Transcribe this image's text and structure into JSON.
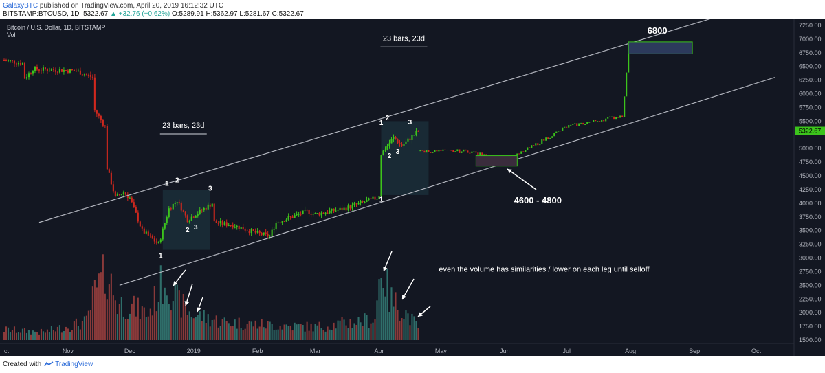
{
  "header": {
    "publisher": "GalaxyBTC",
    "published_text": "published on TradingView.com, April 20, 2019 16:12:32 UTC",
    "symbol": "BITSTAMP:BTCUSD, 1D",
    "last": "5322.67",
    "change": "▲ +32.76 (+0.62%)",
    "ohlc": "O:5289.91 H:5362.97 L:5281.67 C:5322.67"
  },
  "footer": {
    "created_with": "Created with",
    "brand": "TradingView"
  },
  "colors": {
    "bg": "#131722",
    "up": "#3cc41c",
    "down": "#d0281e",
    "vol_up": "#2f6e6a",
    "vol_down": "#8a3a3a",
    "channel": "#b2b5be",
    "price_tag": "#3cc41c"
  },
  "chart_data": {
    "type": "candlestick",
    "title": "Bitcoin / U.S. Dollar, 1D, BITSTAMP",
    "subtitle": "Vol",
    "price_tag": "5322.67",
    "y_ticks": [
      7250,
      7000,
      6750,
      6500,
      6250,
      6000,
      5750,
      5500,
      5000,
      4750,
      4500,
      4250,
      4000,
      3750,
      3500,
      3250,
      3000,
      2750,
      2500,
      2250,
      2000,
      1750,
      1500
    ],
    "y_tick_labels": [
      "7250.00",
      "7000.00",
      "6750.00",
      "6500.00",
      "6250.00",
      "6000.00",
      "5750.00",
      "5500.00",
      "5000.00",
      "4750.00",
      "4500.00",
      "4250.00",
      "4000.00",
      "3750.00",
      "3500.00",
      "3250.00",
      "3000.00",
      "2750.00",
      "2500.00",
      "2250.00",
      "2000.00",
      "1750.00",
      "1500.00"
    ],
    "x_ticks": [
      {
        "date": "2018-10-01",
        "label": "ct"
      },
      {
        "date": "2018-11-01",
        "label": "Nov"
      },
      {
        "date": "2018-12-01",
        "label": "Dec"
      },
      {
        "date": "2019-01-01",
        "label": "2019"
      },
      {
        "date": "2019-02-01",
        "label": "Feb"
      },
      {
        "date": "2019-03-01",
        "label": "Mar"
      },
      {
        "date": "2019-04-01",
        "label": "Apr"
      },
      {
        "date": "2019-05-01",
        "label": "May"
      },
      {
        "date": "2019-06-01",
        "label": "Jun"
      },
      {
        "date": "2019-07-01",
        "label": "Jul"
      },
      {
        "date": "2019-08-01",
        "label": "Aug"
      },
      {
        "date": "2019-09-01",
        "label": "Sep"
      },
      {
        "date": "2019-10-01",
        "label": "Oct"
      }
    ],
    "price_anchors": [
      [
        "2018-10-01",
        6610
      ],
      [
        "2018-10-10",
        6560
      ],
      [
        "2018-10-11",
        6290
      ],
      [
        "2018-10-15",
        6450
      ],
      [
        "2018-11-05",
        6420
      ],
      [
        "2018-11-13",
        6300
      ],
      [
        "2018-11-14",
        5700
      ],
      [
        "2018-11-19",
        5400
      ],
      [
        "2018-11-20",
        4650
      ],
      [
        "2018-11-24",
        4100
      ],
      [
        "2018-11-28",
        4200
      ],
      [
        "2018-12-01",
        4100
      ],
      [
        "2018-12-07",
        3500
      ],
      [
        "2018-12-15",
        3250
      ],
      [
        "2018-12-20",
        3900
      ],
      [
        "2018-12-24",
        4050
      ],
      [
        "2018-12-29",
        3700
      ],
      [
        "2019-01-04",
        3850
      ],
      [
        "2019-01-10",
        4000
      ],
      [
        "2019-01-11",
        3650
      ],
      [
        "2019-01-20",
        3600
      ],
      [
        "2019-02-01",
        3450
      ],
      [
        "2019-02-07",
        3400
      ],
      [
        "2019-02-10",
        3650
      ],
      [
        "2019-02-25",
        3850
      ],
      [
        "2019-03-01",
        3800
      ],
      [
        "2019-03-15",
        3900
      ],
      [
        "2019-03-31",
        4100
      ],
      [
        "2019-04-01",
        4150
      ],
      [
        "2019-04-02",
        4900
      ],
      [
        "2019-04-03",
        4950
      ],
      [
        "2019-04-08",
        5200
      ],
      [
        "2019-04-12",
        5050
      ],
      [
        "2019-04-20",
        5322.67
      ]
    ],
    "volume_anchors": [
      [
        "2018-10-01",
        200
      ],
      [
        "2018-10-20",
        150
      ],
      [
        "2018-11-10",
        350
      ],
      [
        "2018-11-14",
        900
      ],
      [
        "2018-11-20",
        1300
      ],
      [
        "2018-11-25",
        700
      ],
      [
        "2018-12-01",
        650
      ],
      [
        "2018-12-10",
        500
      ],
      [
        "2018-12-18",
        1200
      ],
      [
        "2018-12-24",
        750
      ],
      [
        "2018-12-31",
        500
      ],
      [
        "2019-01-15",
        350
      ],
      [
        "2019-02-01",
        300
      ],
      [
        "2019-03-01",
        250
      ],
      [
        "2019-03-30",
        400
      ],
      [
        "2019-04-02",
        1500
      ],
      [
        "2019-04-06",
        800
      ],
      [
        "2019-04-12",
        600
      ],
      [
        "2019-04-20",
        250
      ]
    ],
    "volume_scale_note": "volume values are in the same vertical units as the price axis offset above 1500",
    "channel_lines": [
      {
        "from": [
          "2018-10-18",
          3650
        ],
        "to": [
          "2019-09-20",
          7500
        ]
      },
      {
        "from": [
          "2018-11-26",
          2500
        ],
        "to": [
          "2019-10-10",
          6300
        ]
      }
    ],
    "future_path": [
      [
        "2019-04-20",
        4950
      ],
      [
        "2019-05-15",
        4950
      ],
      [
        "2019-06-01",
        4750
      ],
      [
        "2019-07-01",
        5400
      ],
      [
        "2019-07-28",
        5600
      ],
      [
        "2019-07-31",
        6750
      ]
    ],
    "boxes": [
      {
        "from": [
          "2018-12-17",
          4250
        ],
        "to": [
          "2019-01-09",
          3150
        ]
      },
      {
        "from": [
          "2019-04-02",
          5500
        ],
        "to": [
          "2019-04-25",
          4150
        ]
      }
    ],
    "target_box": {
      "from": [
        "2019-07-31",
        6950
      ],
      "to": [
        "2019-08-31",
        6730
      ],
      "label": "6800"
    },
    "range_box": {
      "from": [
        "2019-05-18",
        4870
      ],
      "to": [
        "2019-06-07",
        4680
      ],
      "label": "4600 - 4800"
    },
    "annotations": [
      {
        "text": "23 bars, 23d",
        "at": [
          "2018-12-27",
          5380
        ]
      },
      {
        "text": "23 bars, 23d",
        "at": [
          "2019-04-13",
          6970
        ]
      },
      {
        "text": "even the volume has similarities / lower on each leg until selloff",
        "at": [
          "2019-04-30",
          2750
        ]
      },
      {
        "text": "6800",
        "at": [
          "2019-08-14",
          7100
        ]
      },
      {
        "text": "4600 - 4800",
        "at": [
          "2019-06-17",
          4000
        ]
      }
    ],
    "point_labels": [
      {
        "text": "1",
        "at": [
          "2018-12-16",
          3000
        ]
      },
      {
        "text": "1",
        "at": [
          "2018-12-19",
          4320
        ]
      },
      {
        "text": "2",
        "at": [
          "2018-12-24",
          4380
        ]
      },
      {
        "text": "2",
        "at": [
          "2018-12-29",
          3470
        ]
      },
      {
        "text": "3",
        "at": [
          "2019-01-02",
          3520
        ]
      },
      {
        "text": "3",
        "at": [
          "2019-01-09",
          4230
        ]
      },
      {
        "text": "1",
        "at": [
          "2019-04-02",
          5430
        ]
      },
      {
        "text": "1",
        "at": [
          "2019-04-02",
          4030
        ]
      },
      {
        "text": "2",
        "at": [
          "2019-04-05",
          5520
        ]
      },
      {
        "text": "2",
        "at": [
          "2019-04-06",
          4830
        ]
      },
      {
        "text": "3",
        "at": [
          "2019-04-10",
          4900
        ]
      },
      {
        "text": "3",
        "at": [
          "2019-04-16",
          5440
        ]
      }
    ]
  }
}
